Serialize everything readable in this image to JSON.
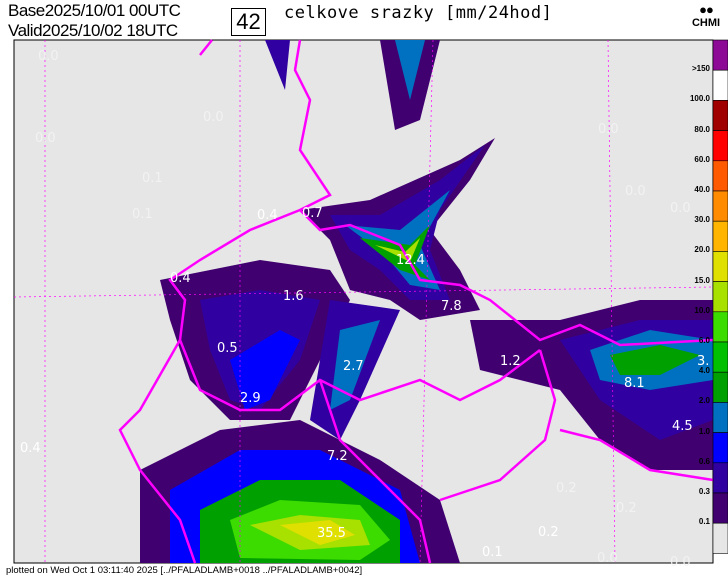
{
  "header": {
    "base_label": "Base",
    "base_time": "2025/10/01 00UTC",
    "valid_label": "Valid",
    "valid_time": "2025/10/02 18UTC",
    "forecast_hour": "42",
    "title": "celkove srazky [mm/24hod]",
    "logo_text": "CHMI"
  },
  "legend": {
    "labels": [
      ">150",
      "100.0",
      "80.0",
      "60.0",
      "40.0",
      "30.0",
      "20.0",
      "15.0",
      "10.0",
      "6.0",
      "4.0",
      "2.0",
      "1.0",
      "0.6",
      "0.3",
      "0.1"
    ],
    "colors": [
      "#8c0a96",
      "#ffffff",
      "#a00000",
      "#ff0000",
      "#ff5a00",
      "#ff8c00",
      "#ffb400",
      "#e0e000",
      "#a8e000",
      "#3cdc00",
      "#00c000",
      "#00a000",
      "#0070c0",
      "#0000ff",
      "#3000a0",
      "#400070",
      "#e6e6e6"
    ]
  },
  "map": {
    "background": "#e6e6e6",
    "border_color": "#ff00ff",
    "values": [
      {
        "v": "0.0"
      },
      {
        "v": "0.0"
      },
      {
        "v": "0.0"
      },
      {
        "v": "0.1"
      },
      {
        "v": "0.1"
      },
      {
        "v": "0.4"
      },
      {
        "v": "0.7"
      },
      {
        "v": "12.4"
      },
      {
        "v": "0.4"
      },
      {
        "v": "0.5"
      },
      {
        "v": "1.6"
      },
      {
        "v": "7.8"
      },
      {
        "v": "0.0"
      },
      {
        "v": "0.0"
      },
      {
        "v": "0.0"
      },
      {
        "v": "1.2"
      },
      {
        "v": "3."
      },
      {
        "v": "8.1"
      },
      {
        "v": "2.7"
      },
      {
        "v": "2.9"
      },
      {
        "v": "4.5"
      },
      {
        "v": "0.4"
      },
      {
        "v": "7.2"
      },
      {
        "v": "35.5"
      },
      {
        "v": "0.2"
      },
      {
        "v": "0.2"
      },
      {
        "v": "0.2"
      },
      {
        "v": "0.1"
      },
      {
        "v": "0.0"
      },
      {
        "v": "0.0"
      }
    ]
  },
  "footer": {
    "text": "plotted on Wed Oct  1 03:11:40 2025 [../PFALADLAMB+0018 ../PFALADLAMB+0042]"
  }
}
